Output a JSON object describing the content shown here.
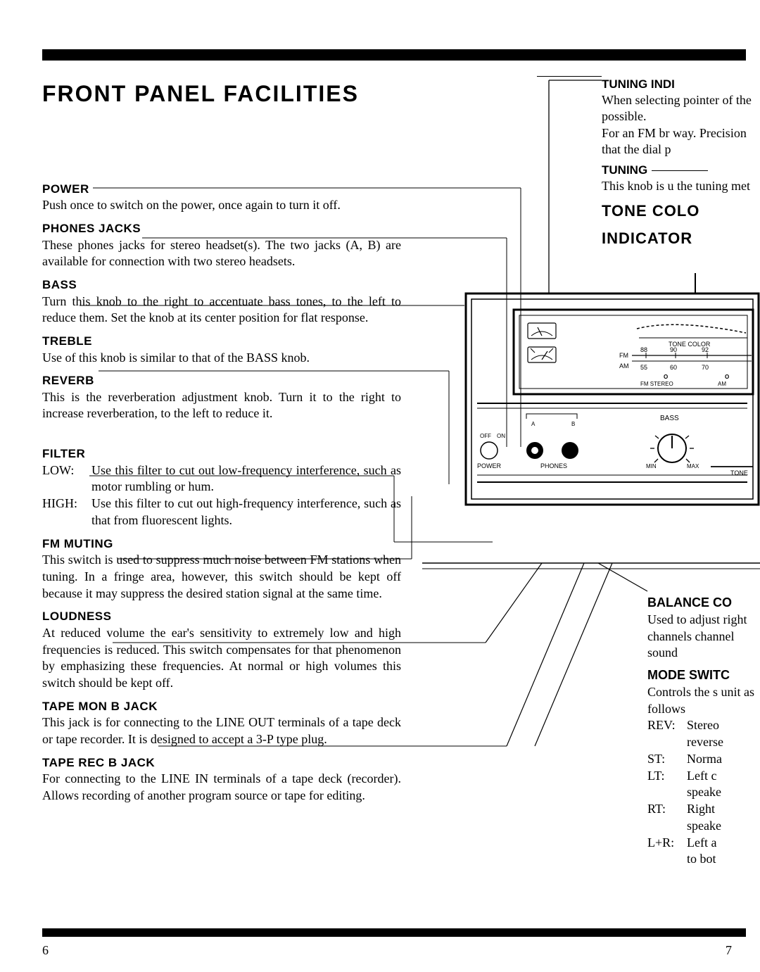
{
  "title": "FRONT  PANEL  FACILITIES",
  "sections": [
    {
      "head": "POWER",
      "rule_w": 485,
      "body": "Push once to switch on the power, once again to turn it off."
    },
    {
      "head": "PHONES JACKS",
      "rule_w": 395,
      "body": "These phones jacks for stereo headset(s).\nThe two jacks (A, B) are available for connection with two stereo headsets."
    },
    {
      "head": "BASS",
      "rule_w": 170,
      "body": "Turn this knob to the right to accentuate bass tones, to the left to reduce them. Set the knob at its center position for flat response."
    },
    {
      "head": "TREBLE",
      "rule_w": 460,
      "body": "Use of this knob is similar to that of the BASS knob."
    },
    {
      "head": "REVERB",
      "rule_w": 150,
      "body": "This is the reverberation adjustment knob. Turn it to the right to increase reverberation, to the left to reduce it."
    },
    {
      "head": "FILTER",
      "rule_w": 430,
      "defs": [
        {
          "k": "LOW:",
          "v": "Use this filter to cut out low-frequency interference, such as motor rumbling or hum."
        },
        {
          "k": "HIGH:",
          "v": "Use this filter to cut out high-frequency interference, such as that from fluorescent lights."
        }
      ]
    },
    {
      "head": "FM MUTING",
      "rule_w": 420,
      "body": "This switch is used to suppress much noise between FM stations when tuning. In a fringe area, however, this switch should be kept off because it may suppress the desired station signal at the same time."
    },
    {
      "head": "LOUDNESS",
      "rule_w": 530,
      "body": "At reduced volume the ear's sensitivity to extremely low and high frequencies is reduced. This switch compensates for that phenomenon by emphasizing these frequencies. At normal or high volumes this switch should be kept off."
    },
    {
      "head": "TAPE MON B JACK",
      "rule_w": 470,
      "body": "This jack is for connecting to the LINE OUT terminals of a tape deck or tape recorder. It is designed to accept a 3-P type plug."
    },
    {
      "head": "TAPE REC B JACK",
      "rule_w": 350,
      "body": "For connecting to the LINE IN terminals of a tape deck (recorder). Allows recording of another program source or tape for editing."
    }
  ],
  "right_top": {
    "tuning_ind_h": "TUNING INDI",
    "tuning_ind_body": "When selecting pointer of the possible.\nFor an FM br way. Precision that the dial p",
    "tuning_h": "TUNING",
    "tuning_body": "This knob is u the tuning met",
    "tone_colo": "TONE  COLO",
    "indicator": "INDICATOR"
  },
  "right_bot": {
    "balance_h": "BALANCE CO",
    "balance_body": "Used to adjust right channels channel sound",
    "mode_h": "MODE SWITC",
    "mode_body": "Controls the s unit as follows",
    "modes": [
      {
        "k": "REV:",
        "v": "Stereo"
      },
      {
        "k": "",
        "v": "reverse"
      },
      {
        "k": "ST:",
        "v": "Norma"
      },
      {
        "k": "LT:",
        "v": "Left c"
      },
      {
        "k": "",
        "v": "speake"
      },
      {
        "k": "RT:",
        "v": "Right"
      },
      {
        "k": "",
        "v": "speake"
      },
      {
        "k": "L+R:",
        "v": "Left a"
      },
      {
        "k": "",
        "v": "to bot"
      }
    ]
  },
  "diagram": {
    "fm_label": "FM",
    "am_label": "AM",
    "fm_ticks": [
      "88",
      "90",
      "92"
    ],
    "am_ticks": [
      "55",
      "60",
      "70"
    ],
    "fm_stereo": "FM STEREO",
    "am_small": "AM",
    "tone_color": "TONE   COLOR",
    "bass": "BASS",
    "min": "MIN",
    "max": "MAX",
    "tone": "TONE",
    "off": "OFF",
    "on": "ON",
    "power": "POWER",
    "phones": "PHONES",
    "a": "A",
    "b": "B",
    "o": "O"
  },
  "page_left": "6",
  "page_right": "7"
}
